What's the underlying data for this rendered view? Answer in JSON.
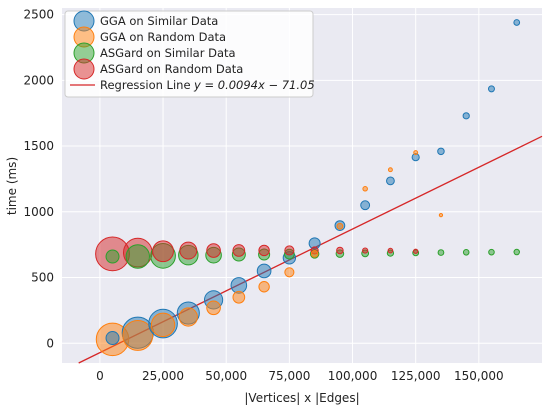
{
  "chart_data": {
    "type": "scatter",
    "title": "",
    "xlabel": "|Vertices| x |Edges|",
    "ylabel": "time (ms)",
    "xlim": [
      -15000,
      175000
    ],
    "ylim": [
      -150,
      2550
    ],
    "x_ticks": [
      0,
      25000,
      50000,
      75000,
      100000,
      125000,
      150000
    ],
    "x_tick_labels": [
      "0",
      "25,000",
      "50,000",
      "75,000",
      "100,000",
      "125,000",
      "150,000"
    ],
    "y_ticks": [
      0,
      500,
      1000,
      1500,
      2000,
      2500
    ],
    "y_tick_labels": [
      "0",
      "500",
      "1000",
      "1500",
      "2000",
      "2500"
    ],
    "grid": true,
    "background": "#eaeaf2",
    "legend_position": "top-left",
    "series": [
      {
        "name": "GGA on Similar Data",
        "color": "#1f77b4",
        "points": [
          {
            "x": 5000,
            "y": 40,
            "size": 1.0
          },
          {
            "x": 15000,
            "y": 80,
            "size": 2.4
          },
          {
            "x": 25000,
            "y": 150,
            "size": 2.2
          },
          {
            "x": 35000,
            "y": 230,
            "size": 1.7
          },
          {
            "x": 45000,
            "y": 330,
            "size": 1.4
          },
          {
            "x": 55000,
            "y": 440,
            "size": 1.2
          },
          {
            "x": 65000,
            "y": 550,
            "size": 1.05
          },
          {
            "x": 75000,
            "y": 650,
            "size": 0.95
          },
          {
            "x": 85000,
            "y": 760,
            "size": 0.85
          },
          {
            "x": 95000,
            "y": 895,
            "size": 0.75
          },
          {
            "x": 105000,
            "y": 1050,
            "size": 0.68
          },
          {
            "x": 115000,
            "y": 1235,
            "size": 0.6
          },
          {
            "x": 125000,
            "y": 1415,
            "size": 0.55
          },
          {
            "x": 135000,
            "y": 1460,
            "size": 0.5
          },
          {
            "x": 145000,
            "y": 1730,
            "size": 0.48
          },
          {
            "x": 155000,
            "y": 1935,
            "size": 0.46
          },
          {
            "x": 165000,
            "y": 2440,
            "size": 0.44
          }
        ]
      },
      {
        "name": "GGA on Random Data",
        "color": "#ff7f0e",
        "points": [
          {
            "x": 5000,
            "y": 30,
            "size": 2.5
          },
          {
            "x": 15000,
            "y": 60,
            "size": 2.3
          },
          {
            "x": 25000,
            "y": 140,
            "size": 1.8
          },
          {
            "x": 35000,
            "y": 200,
            "size": 1.4
          },
          {
            "x": 45000,
            "y": 270,
            "size": 1.05
          },
          {
            "x": 55000,
            "y": 350,
            "size": 0.9
          },
          {
            "x": 65000,
            "y": 430,
            "size": 0.8
          },
          {
            "x": 75000,
            "y": 540,
            "size": 0.7
          },
          {
            "x": 85000,
            "y": 680,
            "size": 0.5
          },
          {
            "x": 95000,
            "y": 890,
            "size": 0.45
          },
          {
            "x": 105000,
            "y": 1175,
            "size": 0.35
          },
          {
            "x": 115000,
            "y": 1320,
            "size": 0.3
          },
          {
            "x": 125000,
            "y": 1450,
            "size": 0.3
          },
          {
            "x": 135000,
            "y": 975,
            "size": 0.25
          }
        ]
      },
      {
        "name": "ASGard on Similar Data",
        "color": "#2ca02c",
        "points": [
          {
            "x": 5000,
            "y": 660,
            "size": 1.0
          },
          {
            "x": 15000,
            "y": 660,
            "size": 1.8
          },
          {
            "x": 25000,
            "y": 665,
            "size": 1.9
          },
          {
            "x": 35000,
            "y": 670,
            "size": 1.5
          },
          {
            "x": 45000,
            "y": 670,
            "size": 1.2
          },
          {
            "x": 55000,
            "y": 675,
            "size": 1.0
          },
          {
            "x": 65000,
            "y": 675,
            "size": 0.85
          },
          {
            "x": 75000,
            "y": 678,
            "size": 0.75
          },
          {
            "x": 85000,
            "y": 680,
            "size": 0.65
          },
          {
            "x": 95000,
            "y": 682,
            "size": 0.58
          },
          {
            "x": 105000,
            "y": 684,
            "size": 0.52
          },
          {
            "x": 115000,
            "y": 686,
            "size": 0.48
          },
          {
            "x": 125000,
            "y": 688,
            "size": 0.45
          },
          {
            "x": 135000,
            "y": 690,
            "size": 0.44
          },
          {
            "x": 145000,
            "y": 692,
            "size": 0.43
          },
          {
            "x": 155000,
            "y": 693,
            "size": 0.43
          },
          {
            "x": 165000,
            "y": 694,
            "size": 0.42
          }
        ]
      },
      {
        "name": "ASGard on Random Data",
        "color": "#d62728",
        "points": [
          {
            "x": 5000,
            "y": 680,
            "size": 2.6
          },
          {
            "x": 15000,
            "y": 690,
            "size": 2.2
          },
          {
            "x": 25000,
            "y": 700,
            "size": 1.6
          },
          {
            "x": 35000,
            "y": 705,
            "size": 1.3
          },
          {
            "x": 45000,
            "y": 705,
            "size": 1.05
          },
          {
            "x": 55000,
            "y": 706,
            "size": 0.9
          },
          {
            "x": 65000,
            "y": 706,
            "size": 0.8
          },
          {
            "x": 75000,
            "y": 706,
            "size": 0.7
          },
          {
            "x": 85000,
            "y": 706,
            "size": 0.55
          },
          {
            "x": 95000,
            "y": 706,
            "size": 0.5
          },
          {
            "x": 105000,
            "y": 705,
            "size": 0.4
          },
          {
            "x": 115000,
            "y": 705,
            "size": 0.36
          },
          {
            "x": 125000,
            "y": 700,
            "size": 0.33
          }
        ]
      }
    ],
    "regression": {
      "name": "Regression Line",
      "equation": "y = 0.0094x − 71.05",
      "slope": 0.0094,
      "intercept": -71.05,
      "color": "#d62728"
    }
  }
}
